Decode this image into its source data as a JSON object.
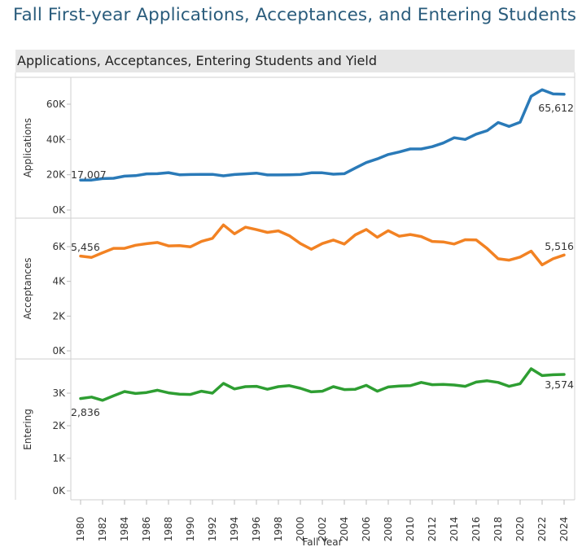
{
  "page": {
    "title": "Fall First-year Applications, Acceptances, and Entering Students",
    "section_title": "Applications, Acceptances, Entering Students and Yield"
  },
  "chart_data": {
    "type": "line",
    "xlabel": "Fall Year",
    "x": [
      1980,
      1981,
      1982,
      1983,
      1984,
      1985,
      1986,
      1987,
      1988,
      1989,
      1990,
      1991,
      1992,
      1993,
      1994,
      1995,
      1996,
      1997,
      1998,
      1999,
      2000,
      2001,
      2002,
      2003,
      2004,
      2005,
      2006,
      2007,
      2008,
      2009,
      2010,
      2011,
      2012,
      2013,
      2014,
      2015,
      2016,
      2017,
      2018,
      2019,
      2020,
      2021,
      2022,
      2023,
      2024
    ],
    "x_tick_labels": [
      "1980",
      "1982",
      "1984",
      "1986",
      "1988",
      "1990",
      "1992",
      "1994",
      "1996",
      "1998",
      "2000",
      "2002",
      "2004",
      "2006",
      "2008",
      "2010",
      "2012",
      "2014",
      "2016",
      "2018",
      "2020",
      "2022",
      "2024"
    ],
    "series": [
      {
        "name": "Applications",
        "color": "#2a7ab8",
        "ylabel": "Applications",
        "ylim": [
          0,
          72000
        ],
        "ticks": [
          0,
          20000,
          40000,
          60000
        ],
        "tick_labels": [
          "0K",
          "20K",
          "40K",
          "60K"
        ],
        "values": [
          17007,
          17000,
          17800,
          18000,
          19200,
          19500,
          20500,
          20600,
          21200,
          20000,
          20100,
          20200,
          20200,
          19400,
          20100,
          20500,
          20900,
          19900,
          19900,
          20000,
          20100,
          21100,
          21100,
          20300,
          20600,
          23800,
          26900,
          29000,
          31500,
          32900,
          34600,
          34600,
          35900,
          38000,
          41000,
          40000,
          43000,
          45000,
          49600,
          47400,
          49800,
          64500,
          68200,
          65800,
          65612
        ],
        "label_first": "17,007",
        "label_last": "65,612"
      },
      {
        "name": "Acceptances",
        "color": "#f28223",
        "ylabel": "Acceptances",
        "ylim": [
          0,
          7400
        ],
        "ticks": [
          0,
          2000,
          4000,
          6000
        ],
        "tick_labels": [
          "0K",
          "2K",
          "4K",
          "6K"
        ],
        "values": [
          5456,
          5380,
          5650,
          5900,
          5900,
          6080,
          6170,
          6240,
          6040,
          6060,
          5990,
          6300,
          6480,
          7250,
          6740,
          7120,
          6980,
          6820,
          6910,
          6630,
          6180,
          5850,
          6180,
          6380,
          6150,
          6680,
          6990,
          6540,
          6920,
          6600,
          6700,
          6580,
          6300,
          6270,
          6150,
          6400,
          6390,
          5890,
          5300,
          5220,
          5400,
          5740,
          4950,
          5300,
          5516
        ]
      },
      {
        "name": "Entering",
        "color": "#2e9e32",
        "ylabel": "Entering",
        "ylim": [
          0,
          3700
        ],
        "ticks": [
          0,
          1000,
          2000,
          3000
        ],
        "tick_labels": [
          "0K",
          "1K",
          "2K",
          "3K"
        ],
        "values": [
          2836,
          2880,
          2780,
          2920,
          3050,
          2990,
          3020,
          3090,
          3010,
          2970,
          2960,
          3060,
          3000,
          3300,
          3130,
          3200,
          3210,
          3120,
          3200,
          3230,
          3150,
          3040,
          3060,
          3200,
          3110,
          3120,
          3240,
          3060,
          3190,
          3220,
          3230,
          3330,
          3260,
          3270,
          3250,
          3210,
          3340,
          3380,
          3330,
          3210,
          3290,
          3750,
          3540,
          3565,
          3574
        ],
        "label_first": "2,836",
        "label_last": "3,574"
      }
    ],
    "acceptances_label_first": "5,456",
    "acceptances_label_last": "5,516"
  }
}
